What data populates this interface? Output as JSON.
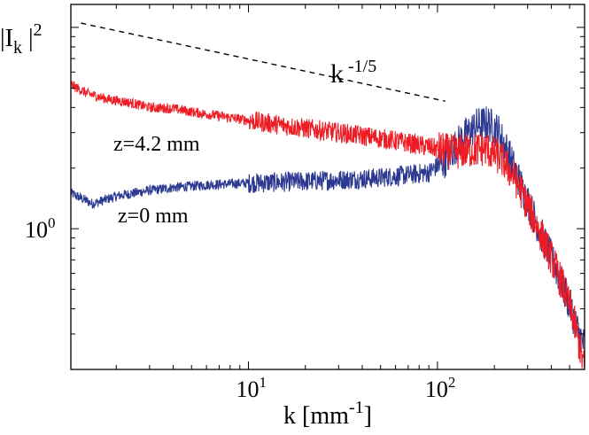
{
  "chart_data": {
    "type": "line",
    "xscale": "log",
    "yscale": "log",
    "xlim": [
      1.15,
      600
    ],
    "ylim": [
      0.2,
      13
    ],
    "grid": false,
    "ylabel": {
      "base": "|I",
      "sub": "k",
      "tail": " |",
      "sup": "2"
    },
    "xlabel": {
      "text": "k [mm",
      "sup": "-1",
      "tail": "]"
    },
    "x_ticks": [
      {
        "value": 10,
        "base": "10",
        "exp": "1"
      },
      {
        "value": 100,
        "base": "10",
        "exp": "2"
      }
    ],
    "y_ticks": [
      {
        "value": 1,
        "base": "10",
        "exp": "0"
      }
    ],
    "reference_line": {
      "label": {
        "base": "k",
        "sup": " -1/5"
      },
      "exponent": -0.2,
      "x": [
        1.3,
        110
      ],
      "y": [
        10.5,
        4.3
      ],
      "style": "dashed",
      "color": "#000000"
    },
    "annotations": [
      {
        "text": "z=4.2 mm",
        "series": 0
      },
      {
        "text": "z=0 mm",
        "series": 1
      }
    ],
    "series": [
      {
        "color": "#ee1c24",
        "points": [
          [
            1.15,
            5.2
          ],
          [
            1.4,
            4.7
          ],
          [
            1.8,
            4.4
          ],
          [
            2.3,
            4.25
          ],
          [
            3.0,
            4.0
          ],
          [
            4.0,
            3.95
          ],
          [
            5.5,
            3.75
          ],
          [
            7.5,
            3.6
          ],
          [
            10,
            3.45
          ],
          [
            14,
            3.3
          ],
          [
            20,
            3.15
          ],
          [
            30,
            3.0
          ],
          [
            45,
            2.85
          ],
          [
            65,
            2.7
          ],
          [
            90,
            2.55
          ],
          [
            120,
            2.4
          ],
          [
            150,
            2.45
          ],
          [
            180,
            2.5
          ],
          [
            220,
            2.2
          ],
          [
            260,
            1.75
          ],
          [
            300,
            1.3
          ],
          [
            350,
            0.95
          ],
          [
            400,
            0.72
          ],
          [
            460,
            0.52
          ],
          [
            520,
            0.37
          ],
          [
            560,
            0.27
          ],
          [
            600,
            0.2
          ]
        ]
      },
      {
        "color": "#2b3990",
        "points": [
          [
            1.15,
            1.5
          ],
          [
            1.5,
            1.33
          ],
          [
            2.0,
            1.45
          ],
          [
            3.0,
            1.55
          ],
          [
            4.0,
            1.6
          ],
          [
            6.0,
            1.65
          ],
          [
            9.0,
            1.68
          ],
          [
            14,
            1.7
          ],
          [
            20,
            1.72
          ],
          [
            30,
            1.75
          ],
          [
            45,
            1.78
          ],
          [
            70,
            1.85
          ],
          [
            90,
            1.9
          ],
          [
            110,
            2.2
          ],
          [
            130,
            2.7
          ],
          [
            160,
            3.25
          ],
          [
            185,
            3.35
          ],
          [
            210,
            3.05
          ],
          [
            240,
            2.3
          ],
          [
            280,
            1.6
          ],
          [
            330,
            1.1
          ],
          [
            380,
            0.8
          ],
          [
            440,
            0.58
          ],
          [
            500,
            0.42
          ],
          [
            560,
            0.3
          ],
          [
            600,
            0.26
          ]
        ]
      }
    ]
  }
}
